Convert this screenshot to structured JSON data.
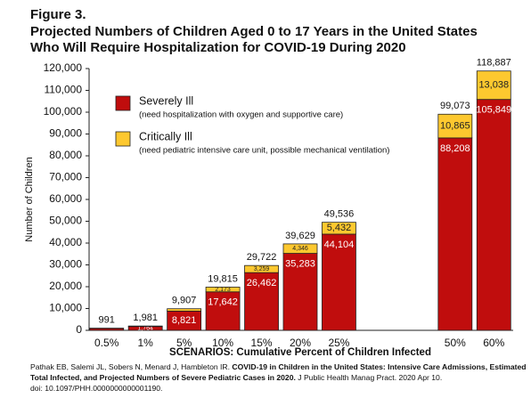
{
  "chart_data": {
    "type": "bar",
    "stacked": true,
    "figure_label": "Figure 3.",
    "title_lines": [
      "Projected Numbers of Children Aged 0 to 17 Years in the United States",
      "Who Will Require Hospitalization for COVID-19 During 2020"
    ],
    "y_label": "Number of Children",
    "x_label": "SCENARIOS: Cumulative Percent of Children Infected",
    "categories": [
      "0.5%",
      "1%",
      "5%",
      "10%",
      "15%",
      "20%",
      "25%",
      null,
      null,
      "50%",
      "60%"
    ],
    "series": [
      {
        "name": "Severely Ill",
        "description": "(need hospitalization with oxygen and supportive care)",
        "color": "#c00d0d",
        "values": [
          882,
          1764,
          8821,
          17642,
          26462,
          35283,
          44104,
          null,
          null,
          88208,
          105849
        ],
        "value_labels": [
          null,
          "1,764",
          "8,821",
          "17,642",
          "26,462",
          "35,283",
          "44,104",
          null,
          null,
          "88,208",
          "105,849"
        ]
      },
      {
        "name": "Critically Ill",
        "description": "(need pediatric intensive care unit, possible mechanical ventilation)",
        "color": "#fdc82f",
        "values": [
          109,
          217,
          1086,
          2173,
          3259,
          4346,
          5432,
          null,
          null,
          10865,
          13038
        ],
        "value_labels": [
          null,
          null,
          null,
          "2,173",
          "3,259",
          "4,346",
          "5,432",
          null,
          null,
          "10,865",
          "13,038"
        ]
      }
    ],
    "totals": [
      991,
      1981,
      9907,
      19815,
      29722,
      39629,
      49536,
      null,
      null,
      99073,
      118887
    ],
    "totals_labels": [
      "991",
      "1,981",
      "9,907",
      "19,815",
      "29,722",
      "39,629",
      "49,536",
      null,
      null,
      "99,073",
      "118,887"
    ],
    "ylim": [
      0,
      120000
    ],
    "yticks": [
      0,
      {
        "value": 10000,
        "label": "10,000"
      },
      {
        "value": 20000,
        "label": "20,000"
      },
      {
        "value": 30000,
        "label": "30,000"
      },
      {
        "value": 40000,
        "label": "40,000"
      },
      {
        "value": 50000,
        "label": "50,000"
      },
      {
        "value": 60000,
        "label": "60,000"
      },
      {
        "value": 70000,
        "label": "70,000"
      },
      {
        "value": 80000,
        "label": "80,000"
      },
      {
        "value": 90000,
        "label": "90,000"
      },
      {
        "value": 100000,
        "label": "100,000"
      },
      {
        "value": 110000,
        "label": "110,000"
      },
      {
        "value": 120000,
        "label": "120,000"
      }
    ],
    "grid": false,
    "citation": [
      [
        {
          "text": "Pathak EB, Salemi JL, Sobers N, Menard J, Hambleton IR. ",
          "bold": false
        },
        {
          "text": "COVID-19 in Children in the United States: Intensive Care Admissions, Estimated",
          "bold": true
        }
      ],
      [
        {
          "text": "Total Infected, and Projected Numbers of Severe Pediatric Cases in 2020.",
          "bold": true
        },
        {
          "text": " J Public Health Manag Pract. 2020 Apr 10.",
          "bold": false
        }
      ],
      [
        {
          "text": "doi: 10.1097/PHH.0000000000001190.",
          "bold": false
        }
      ]
    ]
  }
}
